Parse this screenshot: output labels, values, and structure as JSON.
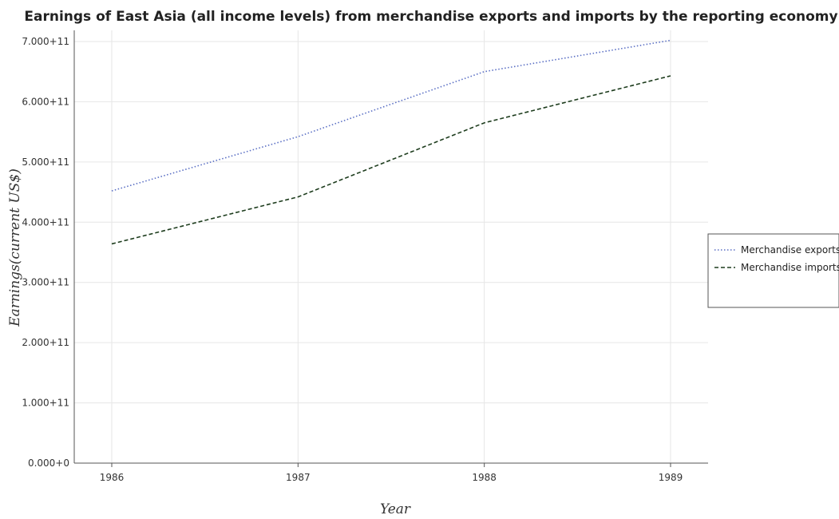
{
  "chart_data": {
    "type": "line",
    "title": "Earnings of East Asia (all income levels) from merchandise exports and imports by the reporting economy",
    "xlabel": "Year",
    "ylabel": "Earnings(current US$)",
    "categories": [
      "1986",
      "1987",
      "1988",
      "1989"
    ],
    "ylim": [
      0,
      700000000000
    ],
    "yticks": [
      0,
      100000000000,
      200000000000,
      300000000000,
      400000000000,
      500000000000,
      600000000000,
      700000000000
    ],
    "ytick_labels": [
      "0.000+0",
      "1.000+11",
      "2.000+11",
      "3.000+11",
      "4.000+11",
      "5.000+11",
      "6.000+11",
      "7.000+11"
    ],
    "grid": true,
    "legend_position": "right",
    "series": [
      {
        "name": "Merchandise exports",
        "color": "#5a6fc4",
        "style": "dotted",
        "values": [
          452000000000,
          542000000000,
          650000000000,
          702000000000
        ]
      },
      {
        "name": "Merchandise imports",
        "color": "#1e3d1e",
        "style": "dashed",
        "values": [
          364000000000,
          442000000000,
          565000000000,
          643000000000
        ]
      }
    ]
  }
}
